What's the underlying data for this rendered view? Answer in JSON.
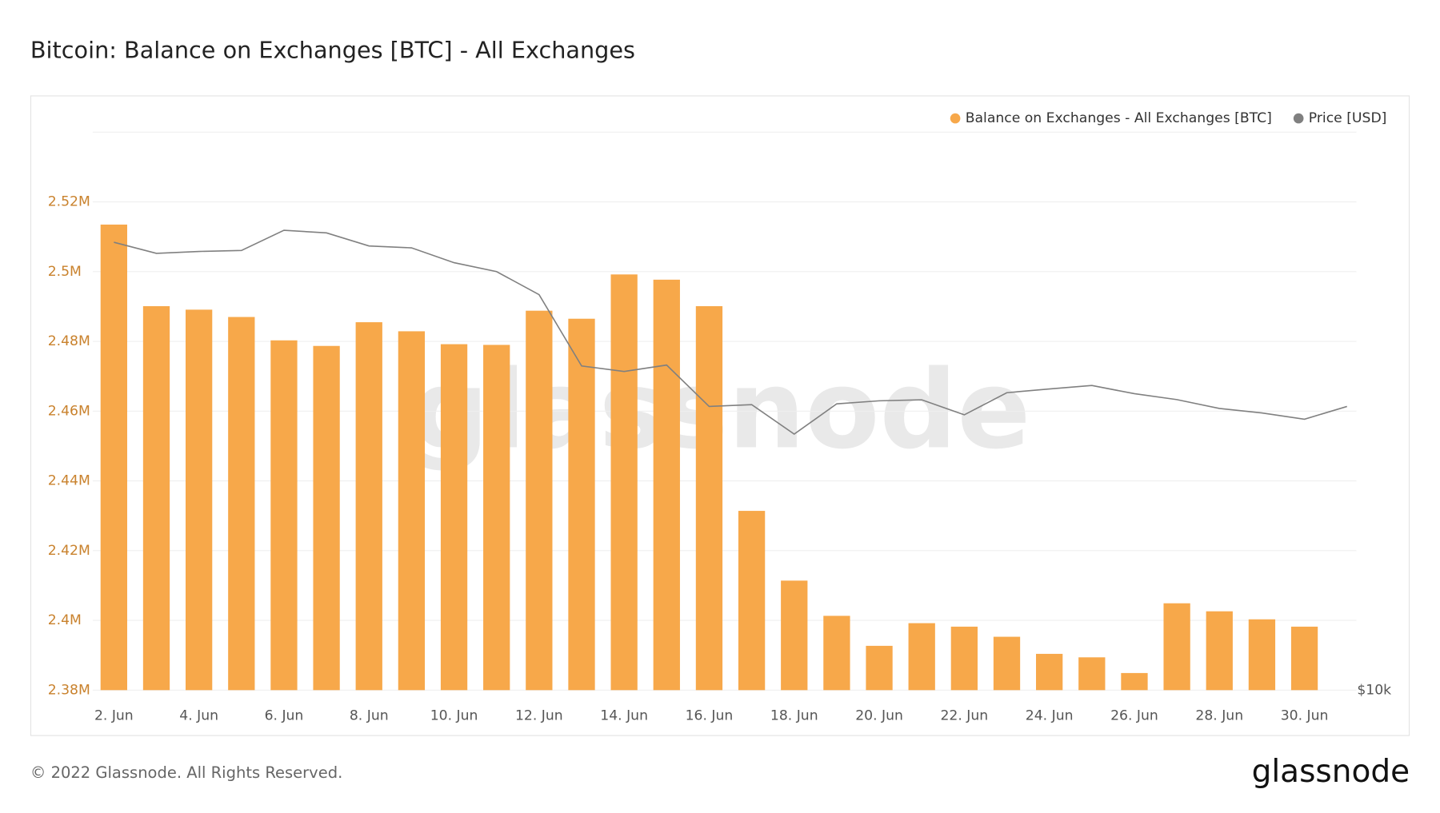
{
  "chart_data": {
    "type": "bar-line",
    "title": "Bitcoin: Balance on Exchanges [BTC] - All Exchanges",
    "watermark": "glassnode",
    "categories": [
      "2. Jun",
      null,
      "4. Jun",
      null,
      "6. Jun",
      null,
      "8. Jun",
      null,
      "10. Jun",
      null,
      "12. Jun",
      null,
      "14. Jun",
      null,
      "16. Jun",
      null,
      "18. Jun",
      null,
      "20. Jun",
      null,
      "22. Jun",
      null,
      "24. Jun",
      null,
      "26. Jun",
      null,
      "28. Jun",
      null,
      "30. Jun",
      null
    ],
    "series": [
      {
        "name": "Balance on Exchanges - All Exchanges [BTC]",
        "color": "#f7a84a",
        "type": "bar",
        "values": [
          2513500,
          2490100,
          2489100,
          2487000,
          2480300,
          2478700,
          2485500,
          2482900,
          2479200,
          2479000,
          2488800,
          2486500,
          2499200,
          2497700,
          2490100,
          2431400,
          2411400,
          2401300,
          2392700,
          2399200,
          2398200,
          2395300,
          2390400,
          2389400,
          2384900,
          2404900,
          2402600,
          2400300,
          2398200,
          null
        ]
      },
      {
        "name": "Price [USD]",
        "color": "#808080",
        "type": "line",
        "axis": "y2",
        "values": [
          30060,
          29250,
          29390,
          29460,
          30960,
          30760,
          29790,
          29650,
          28590,
          27970,
          26430,
          22180,
          21880,
          22230,
          20080,
          20170,
          18760,
          20210,
          20360,
          20410,
          19670,
          20770,
          20960,
          21140,
          20720,
          20420,
          19980,
          19760,
          19460,
          20080
        ]
      }
    ],
    "ylim": [
      2380000,
      2540000
    ],
    "yticks": [
      {
        "value": 2380000,
        "label": "2.38M"
      },
      {
        "value": 2400000,
        "label": "2.4M"
      },
      {
        "value": 2420000,
        "label": "2.42M"
      },
      {
        "value": 2440000,
        "label": "2.44M"
      },
      {
        "value": 2460000,
        "label": "2.46M"
      },
      {
        "value": 2480000,
        "label": "2.48M"
      },
      {
        "value": 2500000,
        "label": "2.5M"
      },
      {
        "value": 2520000,
        "label": "2.52M"
      }
    ],
    "y2lim": [
      10000,
      39400
    ],
    "y2log": true,
    "y2ticks": [
      {
        "value": 10000,
        "label": "$10k"
      }
    ],
    "grid": true,
    "legend": "top-right"
  },
  "footer": {
    "copyright": "© 2022 Glassnode. All Rights Reserved.",
    "logo": "glassnode"
  }
}
